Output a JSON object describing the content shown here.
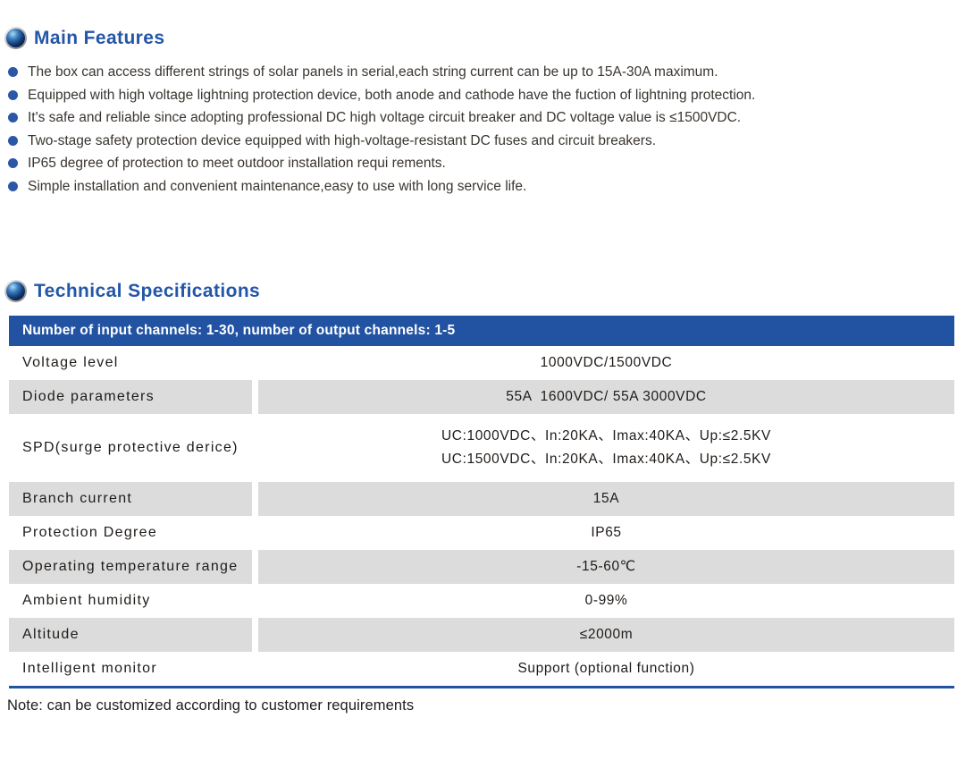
{
  "colors": {
    "accent_blue": "#2456a7",
    "band_blue": "#2253a3",
    "bullet_blue": "#2b57a7",
    "row_gray": "#dcdcdc",
    "text_dark": "#1f1b18"
  },
  "main_features": {
    "title": "Main Features",
    "items": [
      "The box can access different strings of solar panels in serial,each string current can be up to 15A-30A maximum.",
      "Equipped with high voltage lightning protection device, both anode and cathode have the fuction of lightning protection.",
      "It's safe and reliable since adopting professional DC high voltage circuit breaker and DC voltage value is ≤1500VDC.",
      "Two-stage safety protection device equipped with high-voltage-resistant DC fuses and circuit breakers.",
      "IP65 degree of protection to meet outdoor installation requi rements.",
      "Simple installation and convenient maintenance,easy to use with long service life."
    ]
  },
  "tech_specs": {
    "title": "Technical Specifications",
    "table": {
      "header": "Number of input channels: 1-30, number of output channels: 1-5",
      "rows": [
        {
          "label": "Voltage level",
          "values": [
            "1000VDC/1500VDC"
          ],
          "shaded": false
        },
        {
          "label": "Diode parameters",
          "values": [
            "55A  1600VDC/ 55A 3000VDC"
          ],
          "shaded": true
        },
        {
          "label": "SPD(surge protective derice)",
          "values": [
            "UC:1000VDC、In:20KA、Imax:40KA、Up:≤2.5KV",
            "UC:1500VDC、In:20KA、Imax:40KA、Up:≤2.5KV"
          ],
          "shaded": false
        },
        {
          "label": "Branch current",
          "values": [
            "15A"
          ],
          "shaded": true
        },
        {
          "label": "Protection Degree",
          "values": [
            "IP65"
          ],
          "shaded": false
        },
        {
          "label": "Operating temperature range",
          "values": [
            "-15-60℃"
          ],
          "shaded": true
        },
        {
          "label": "Ambient humidity",
          "values": [
            "0-99%"
          ],
          "shaded": false
        },
        {
          "label": "Altitude",
          "values": [
            "≤2000m"
          ],
          "shaded": true
        },
        {
          "label": "Intelligent monitor",
          "values": [
            "Support (optional function)"
          ],
          "shaded": false
        }
      ]
    },
    "note": "Note: can be customized according to customer requirements"
  }
}
